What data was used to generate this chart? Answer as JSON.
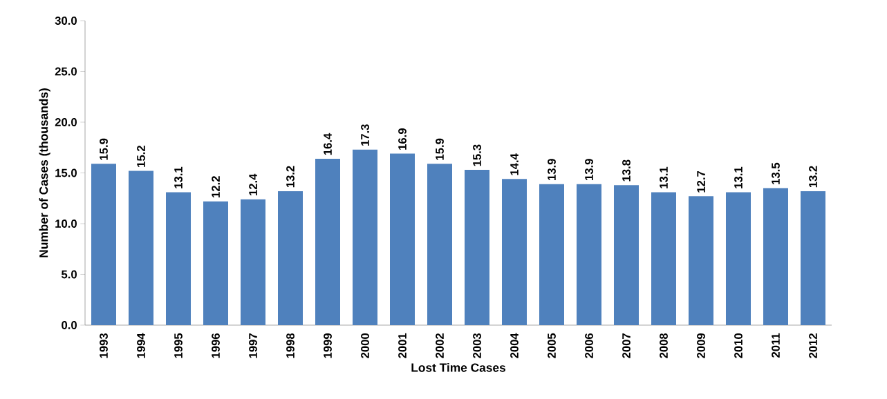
{
  "chart_data": {
    "type": "bar",
    "xlabel": "Lost Time Cases",
    "ylabel": "Number of Cases (thousands)",
    "categories": [
      "1993",
      "1994",
      "1995",
      "1996",
      "1997",
      "1998",
      "1999",
      "2000",
      "2001",
      "2002",
      "2003",
      "2004",
      "2005",
      "2006",
      "2007",
      "2008",
      "2009",
      "2010",
      "2011",
      "2012"
    ],
    "values": [
      15.9,
      15.2,
      13.1,
      12.2,
      12.4,
      13.2,
      16.4,
      17.3,
      16.9,
      15.9,
      15.3,
      14.4,
      13.9,
      13.9,
      13.8,
      13.1,
      12.7,
      13.1,
      13.5,
      13.2
    ],
    "color": "#4f81bd",
    "ylim": [
      0,
      30
    ],
    "yticks": [
      {
        "value": 0,
        "label": "0.0"
      },
      {
        "value": 5,
        "label": "5.0"
      },
      {
        "value": 10,
        "label": "10.0"
      },
      {
        "value": 15,
        "label": "15.0"
      },
      {
        "value": 20,
        "label": "20.0"
      },
      {
        "value": 25,
        "label": "25.0"
      },
      {
        "value": 30,
        "label": "30.0"
      }
    ],
    "data_labels": true
  }
}
